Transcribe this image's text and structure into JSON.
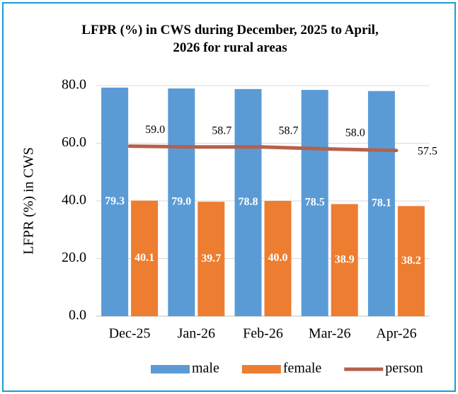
{
  "chart_data": {
    "type": "bar",
    "title": "LFPR (%) in CWS during December, 2025 to April, 2026 for rural areas",
    "ylabel": "LFPR (%) in CWS",
    "categories": [
      "Dec-25",
      "Jan-26",
      "Feb-26",
      "Mar-26",
      "Apr-26"
    ],
    "series": [
      {
        "name": "male",
        "type": "bar",
        "color": "#5b9bd5",
        "values": [
          79.3,
          79.0,
          78.8,
          78.5,
          78.1
        ],
        "value_labels": [
          "79.3",
          "79.0",
          "78.8",
          "78.5",
          "78.1"
        ]
      },
      {
        "name": "female",
        "type": "bar",
        "color": "#ed7d31",
        "values": [
          40.1,
          39.7,
          40.0,
          38.9,
          38.2
        ],
        "value_labels": [
          "40.1",
          "39.7",
          "40.0",
          "38.9",
          "38.2"
        ]
      },
      {
        "name": "person",
        "type": "line",
        "color": "#b5614c",
        "values": [
          59.0,
          58.7,
          58.7,
          58.0,
          57.5
        ],
        "value_labels": [
          "59.0",
          "58.7",
          "58.7",
          "58.0",
          "57.5"
        ]
      }
    ],
    "ylim": [
      0,
      80
    ],
    "yticks": [
      {
        "value": 0,
        "label": "0.0"
      },
      {
        "value": 20,
        "label": "20.0"
      },
      {
        "value": 40,
        "label": "40.0"
      },
      {
        "value": 60,
        "label": "60.0"
      },
      {
        "value": 80,
        "label": "80.0"
      }
    ],
    "grid": true,
    "legend": "bottom"
  }
}
